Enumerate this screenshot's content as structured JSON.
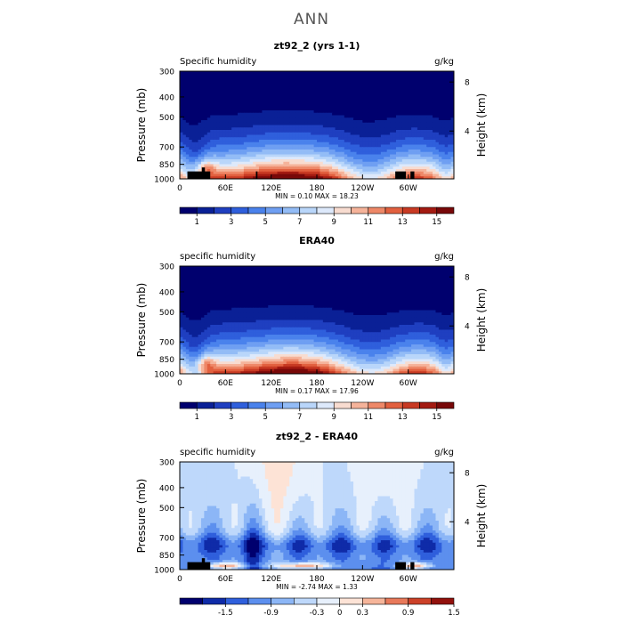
{
  "page": {
    "title": "ANN"
  },
  "colors": {
    "model_scale": [
      "#00006e",
      "#0a2096",
      "#1f3fc0",
      "#2f5fdc",
      "#4a82ec",
      "#6f9ff2",
      "#93bcf6",
      "#b9d6fa",
      "#dde9fb",
      "#f8dcd0",
      "#f5b39a",
      "#ee8868",
      "#e2603f",
      "#c83a23",
      "#a31a11",
      "#780809"
    ],
    "diff_scale": [
      "#00006e",
      "#0f2ba8",
      "#2f5fdc",
      "#5c8fee",
      "#8cb6f6",
      "#bed8fb",
      "#e7f0fc",
      "#fde3d6",
      "#f6b59a",
      "#e8795a",
      "#cc4128",
      "#92110c"
    ],
    "terrain": "#000000"
  },
  "chart_data": [
    {
      "type": "heatmap",
      "title": "zt92_2 (yrs 1-1)",
      "left_label": "Specific humidity",
      "right_label": "g/kg",
      "ylabel": "Pressure (mb)",
      "y2label": "Height (km)",
      "y_ticks": [
        "300",
        "400",
        "500",
        "700",
        "850",
        "1000"
      ],
      "y_tick_values": [
        300,
        400,
        500,
        700,
        850,
        1000
      ],
      "y2_ticks": [
        "8",
        "4"
      ],
      "y2_tick_values": [
        8,
        4
      ],
      "x_ticks": [
        "0",
        "60E",
        "120E",
        "180",
        "120W",
        "60W"
      ],
      "x_tick_values": [
        0,
        60,
        120,
        180,
        240,
        300
      ],
      "xlim": [
        0,
        360
      ],
      "ylim": [
        1000,
        300
      ],
      "stats": "MIN =   0.10   MAX =  18.23",
      "colorbar_labels": [
        "1",
        "3",
        "5",
        "7",
        "9",
        "11",
        "13",
        "15"
      ],
      "colorbar_values": [
        1,
        3,
        5,
        7,
        9,
        11,
        13,
        15
      ],
      "levels": [
        0,
        1,
        2,
        3,
        4,
        5,
        6,
        7,
        8,
        9,
        10,
        11,
        12,
        13,
        14,
        15,
        16
      ],
      "field": "humidity",
      "terrain": [
        {
          "lon0": 10,
          "lon1": 40,
          "p": 920
        },
        {
          "lon0": 29,
          "lon1": 33,
          "p": 880
        },
        {
          "lon0": 100,
          "lon1": 102,
          "p": 920
        },
        {
          "lon0": 283,
          "lon1": 297,
          "p": 920
        },
        {
          "lon0": 303,
          "lon1": 308,
          "p": 920
        }
      ]
    },
    {
      "type": "heatmap",
      "title": "ERA40",
      "left_label": "specific humidity",
      "right_label": "g/kg",
      "ylabel": "Pressure (mb)",
      "y2label": "Height (km)",
      "y_ticks": [
        "300",
        "400",
        "500",
        "700",
        "850",
        "1000"
      ],
      "y_tick_values": [
        300,
        400,
        500,
        700,
        850,
        1000
      ],
      "y2_ticks": [
        "8",
        "4"
      ],
      "y2_tick_values": [
        8,
        4
      ],
      "x_ticks": [
        "0",
        "60E",
        "120E",
        "180",
        "120W",
        "60W"
      ],
      "x_tick_values": [
        0,
        60,
        120,
        180,
        240,
        300
      ],
      "xlim": [
        0,
        360
      ],
      "ylim": [
        1000,
        300
      ],
      "stats": "MIN =   0.17   MAX =  17.96",
      "colorbar_labels": [
        "1",
        "3",
        "5",
        "7",
        "9",
        "11",
        "13",
        "15"
      ],
      "colorbar_values": [
        1,
        3,
        5,
        7,
        9,
        11,
        13,
        15
      ],
      "levels": [
        0,
        1,
        2,
        3,
        4,
        5,
        6,
        7,
        8,
        9,
        10,
        11,
        12,
        13,
        14,
        15,
        16
      ],
      "field": "humidity",
      "terrain": []
    },
    {
      "type": "heatmap",
      "title": "zt92_2 - ERA40",
      "left_label": "specific humidity",
      "right_label": "g/kg",
      "ylabel": "Pressure (mb)",
      "y2label": "Height (km)",
      "y_ticks": [
        "300",
        "400",
        "500",
        "700",
        "850",
        "1000"
      ],
      "y_tick_values": [
        300,
        400,
        500,
        700,
        850,
        1000
      ],
      "y2_ticks": [
        "8",
        "4"
      ],
      "y2_tick_values": [
        8,
        4
      ],
      "x_ticks": [
        "0",
        "60E",
        "120E",
        "180",
        "120W",
        "60W"
      ],
      "x_tick_values": [
        0,
        60,
        120,
        180,
        240,
        300
      ],
      "xlim": [
        0,
        360
      ],
      "ylim": [
        1000,
        300
      ],
      "stats": "MIN =  -2.74   MAX =   1.33",
      "colorbar_labels": [
        "-1.5",
        "-0.9",
        "-0.3",
        "0",
        "0.3",
        "0.9",
        "1.5"
      ],
      "colorbar_values": [
        -1.5,
        -0.9,
        -0.3,
        0,
        0.3,
        0.9,
        1.5
      ],
      "levels": [
        -2.1,
        -1.8,
        -1.5,
        -1.2,
        -0.9,
        -0.6,
        -0.3,
        0,
        0.3,
        0.6,
        0.9,
        1.2,
        1.5
      ],
      "field": "difference",
      "terrain": [
        {
          "lon0": 10,
          "lon1": 40,
          "p": 920
        },
        {
          "lon0": 29,
          "lon1": 33,
          "p": 880
        },
        {
          "lon0": 283,
          "lon1": 297,
          "p": 920
        },
        {
          "lon0": 303,
          "lon1": 308,
          "p": 920
        }
      ]
    }
  ]
}
